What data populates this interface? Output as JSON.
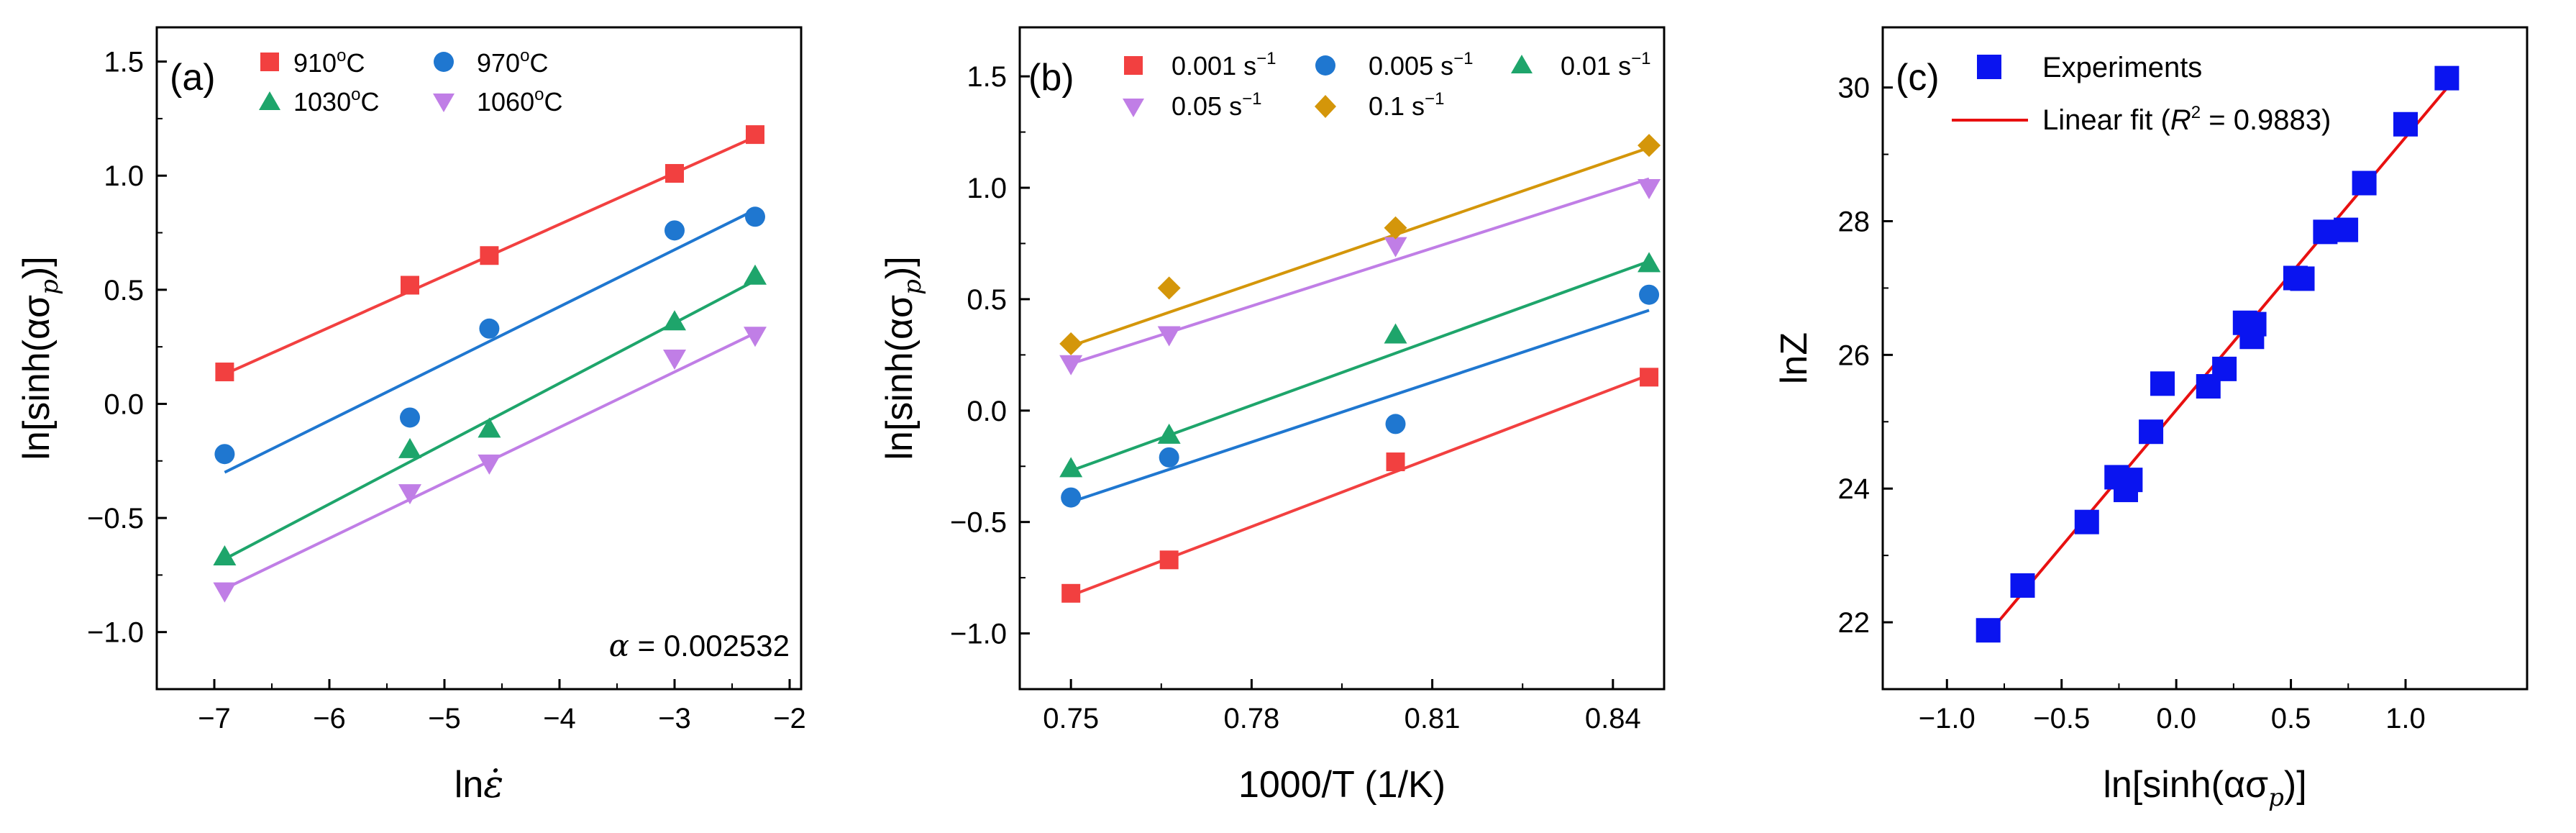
{
  "chart_data": [
    {
      "type": "scatter",
      "panel_label": "(a)",
      "xlabel_main": "ln",
      "xlabel_symbol": "ε̇",
      "ylabel_main": "ln[sinh(ασ",
      "ylabel_sub": "p",
      "ylabel_end": ")]",
      "xlim": [
        -7.5,
        -1.9
      ],
      "ylim": [
        -1.25,
        1.65
      ],
      "xticks": [
        -7,
        -6,
        -5,
        -4,
        -3,
        -2
      ],
      "xtick_labels": [
        "−7",
        "−6",
        "−5",
        "−4",
        "−3",
        "−2"
      ],
      "yticks": [
        -1.0,
        -0.5,
        0.0,
        0.5,
        1.0,
        1.5
      ],
      "ytick_labels": [
        "−1.0",
        "−0.5",
        "0.0",
        "0.5",
        "1.0",
        "1.5"
      ],
      "annotation": {
        "symbol": "α",
        "text": " = 0.002532"
      },
      "series": [
        {
          "name": "910",
          "unit": "C",
          "color": "#f24040",
          "marker": "square",
          "x": [
            -6.91,
            -5.3,
            -4.61,
            -3.0,
            -2.3
          ],
          "y": [
            0.14,
            0.52,
            0.65,
            1.01,
            1.18
          ],
          "fit": [
            [
              -6.91,
              0.13
            ],
            [
              -2.3,
              1.17
            ]
          ]
        },
        {
          "name": "970",
          "unit": "C",
          "color": "#1f77d0",
          "marker": "circle",
          "x": [
            -6.91,
            -5.3,
            -4.61,
            -3.0,
            -2.3
          ],
          "y": [
            -0.22,
            -0.06,
            0.33,
            0.76,
            0.82
          ],
          "fit": [
            [
              -6.91,
              -0.3
            ],
            [
              -2.3,
              0.85
            ]
          ]
        },
        {
          "name": "1030",
          "unit": "C",
          "color": "#1ea56b",
          "marker": "triangle-up",
          "x": [
            -6.91,
            -5.3,
            -4.61,
            -3.0,
            -2.3
          ],
          "y": [
            -0.67,
            -0.2,
            -0.11,
            0.36,
            0.56
          ],
          "fit": [
            [
              -6.91,
              -0.68
            ],
            [
              -2.3,
              0.54
            ]
          ]
        },
        {
          "name": "1060",
          "unit": "C",
          "color": "#c07ee6",
          "marker": "triangle-down",
          "x": [
            -6.91,
            -5.3,
            -4.61,
            -3.0,
            -2.3
          ],
          "y": [
            -0.82,
            -0.39,
            -0.26,
            0.2,
            0.3
          ],
          "fit": [
            [
              -6.91,
              -0.81
            ],
            [
              -2.3,
              0.31
            ]
          ]
        }
      ]
    },
    {
      "type": "scatter",
      "panel_label": "(b)",
      "xlabel_text": "1000/T (1/K)",
      "ylabel_main": "ln[sinh(ασ",
      "ylabel_sub": "p",
      "ylabel_end": ")]",
      "xlim": [
        0.7415,
        0.8485
      ],
      "ylim": [
        -1.25,
        1.72
      ],
      "xticks": [
        0.75,
        0.78,
        0.81,
        0.84
      ],
      "xtick_labels": [
        "0.75",
        "0.78",
        "0.81",
        "0.84"
      ],
      "yticks": [
        -1.0,
        -0.5,
        0.0,
        0.5,
        1.0,
        1.5
      ],
      "ytick_labels": [
        "−1.0",
        "−0.5",
        "0.0",
        "0.5",
        "1.0",
        "1.5"
      ],
      "series": [
        {
          "name": "0.001 s",
          "color": "#f24040",
          "marker": "square",
          "x": [
            0.75,
            0.7663,
            0.8039,
            0.846
          ],
          "y": [
            -0.82,
            -0.67,
            -0.23,
            0.15
          ],
          "fit": [
            [
              0.75,
              -0.83
            ],
            [
              0.846,
              0.16
            ]
          ]
        },
        {
          "name": "0.005 s",
          "color": "#1f77d0",
          "marker": "circle",
          "x": [
            0.75,
            0.7663,
            0.8039,
            0.846
          ],
          "y": [
            -0.39,
            -0.21,
            -0.06,
            0.52
          ],
          "fit": [
            [
              0.75,
              -0.41
            ],
            [
              0.846,
              0.45
            ]
          ]
        },
        {
          "name": "0.01 s",
          "color": "#1ea56b",
          "marker": "triangle-up",
          "x": [
            0.75,
            0.7663,
            0.8039,
            0.846
          ],
          "y": [
            -0.26,
            -0.11,
            0.34,
            0.66
          ],
          "fit": [
            [
              0.75,
              -0.27
            ],
            [
              0.846,
              0.67
            ]
          ]
        },
        {
          "name": "0.05 s",
          "color": "#c07ee6",
          "marker": "triangle-down",
          "x": [
            0.75,
            0.7663,
            0.8039,
            0.846
          ],
          "y": [
            0.21,
            0.34,
            0.74,
            1.0
          ],
          "fit": [
            [
              0.75,
              0.21
            ],
            [
              0.846,
              1.04
            ]
          ]
        },
        {
          "name": "0.1 s",
          "color": "#d4960a",
          "marker": "diamond",
          "x": [
            0.75,
            0.7663,
            0.8039,
            0.846
          ],
          "y": [
            0.3,
            0.55,
            0.82,
            1.19
          ],
          "fit": [
            [
              0.75,
              0.29
            ],
            [
              0.846,
              1.18
            ]
          ]
        }
      ]
    },
    {
      "type": "scatter",
      "panel_label": "(c)",
      "xlabel_main": "ln[sinh(ασ",
      "xlabel_sub": "p",
      "xlabel_end": ")]",
      "ylabel_text": "lnZ",
      "xlim": [
        -1.28,
        1.53
      ],
      "ylim": [
        21.0,
        30.9
      ],
      "xticks": [
        -1.0,
        -0.5,
        0.0,
        0.5,
        1.0
      ],
      "xtick_labels": [
        "−1.0",
        "−0.5",
        "0.0",
        "0.5",
        "1.0"
      ],
      "yticks": [
        22,
        24,
        26,
        28,
        30
      ],
      "ytick_labels": [
        "22",
        "24",
        "26",
        "28",
        "30"
      ],
      "legend": {
        "experiments_label": "Experiments",
        "fit_label_prefix": "Linear fit (",
        "fit_label_r": "R",
        "fit_label_r_exp": "2",
        "fit_label_suffix": " = 0.9883)"
      },
      "series": [
        {
          "name": "Experiments",
          "color": "#0a14f0",
          "marker": "square",
          "x": [
            -0.82,
            -0.67,
            -0.39,
            -0.26,
            -0.22,
            -0.2,
            -0.11,
            -0.06,
            0.14,
            0.21,
            0.3,
            0.33,
            0.34,
            0.52,
            0.55,
            0.65,
            0.74,
            0.82,
            1.0,
            1.18
          ],
          "y": [
            21.88,
            22.55,
            23.5,
            24.17,
            23.98,
            24.13,
            24.85,
            25.57,
            25.53,
            25.79,
            26.48,
            26.27,
            26.46,
            27.15,
            27.14,
            27.84,
            27.87,
            28.57,
            29.45,
            30.14
          ]
        },
        {
          "name": "Linear fit",
          "color": "#e81010",
          "marker": "line",
          "fit": [
            [
              -0.82,
              21.83
            ],
            [
              1.18,
              29.99
            ]
          ]
        }
      ]
    }
  ]
}
